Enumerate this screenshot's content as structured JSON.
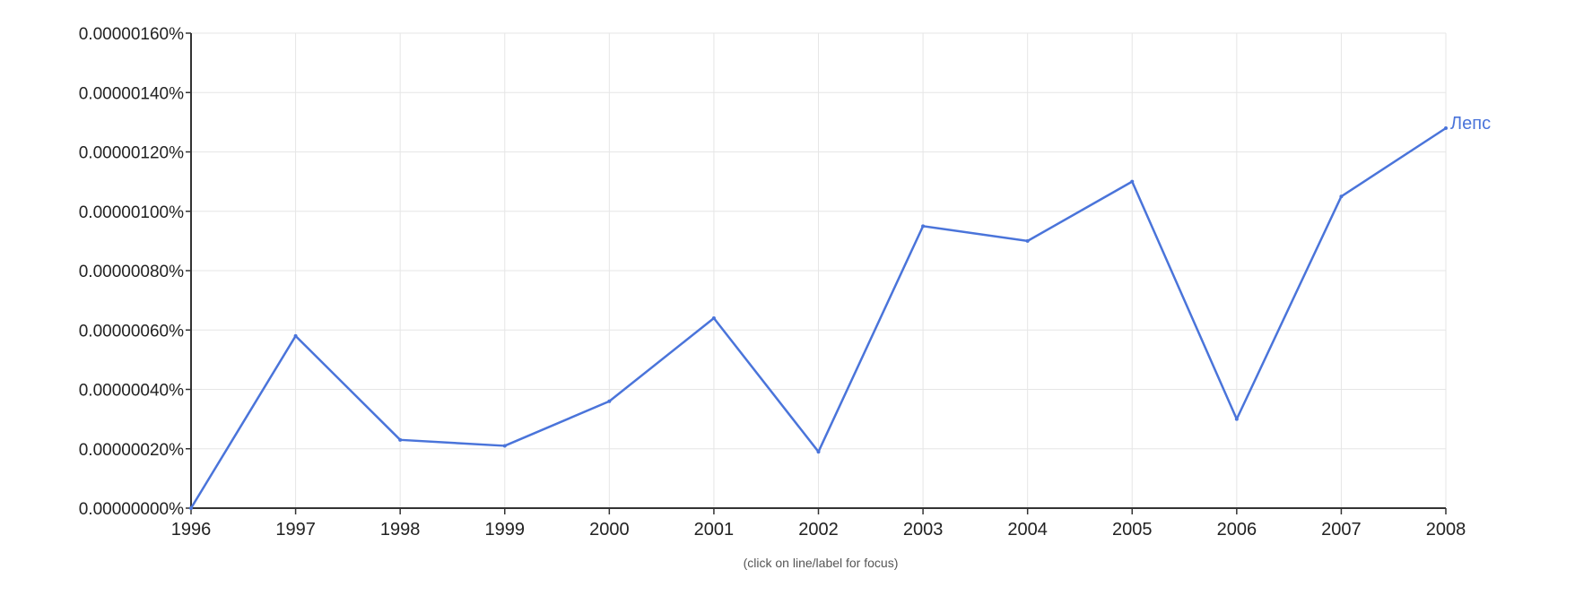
{
  "chart_data": {
    "type": "line",
    "x": [
      1996,
      1997,
      1998,
      1999,
      2000,
      2001,
      2002,
      2003,
      2004,
      2005,
      2006,
      2007,
      2008
    ],
    "x_tick_labels": [
      "1996",
      "1997",
      "1998",
      "1999",
      "2000",
      "2001",
      "2002",
      "2003",
      "2004",
      "2005",
      "2006",
      "2007",
      "2008"
    ],
    "ylim": [
      0,
      1.6e-06
    ],
    "y_ticks": [
      0,
      2e-07,
      4e-07,
      6e-07,
      8e-07,
      1e-06,
      1.2e-06,
      1.4e-06,
      1.6e-06
    ],
    "y_tick_labels": [
      "0.00000000%",
      "0.00000020%",
      "0.00000040%",
      "0.00000060%",
      "0.00000080%",
      "0.00000100%",
      "0.00000120%",
      "0.00000140%",
      "0.00000160%"
    ],
    "series": [
      {
        "name": "Лепс",
        "color": "#4a74da",
        "values": [
          0.0,
          5.8e-07,
          2.3e-07,
          2.1e-07,
          3.6e-07,
          6.4e-07,
          1.9e-07,
          9.5e-07,
          9e-07,
          1.1e-06,
          3e-07,
          1.05e-06,
          1.28e-06
        ]
      }
    ],
    "grid": true,
    "legend": "inline label at end of line",
    "title": "",
    "xlabel": "",
    "ylabel": ""
  },
  "footer": {
    "hint": "(click on line/label for focus)"
  }
}
